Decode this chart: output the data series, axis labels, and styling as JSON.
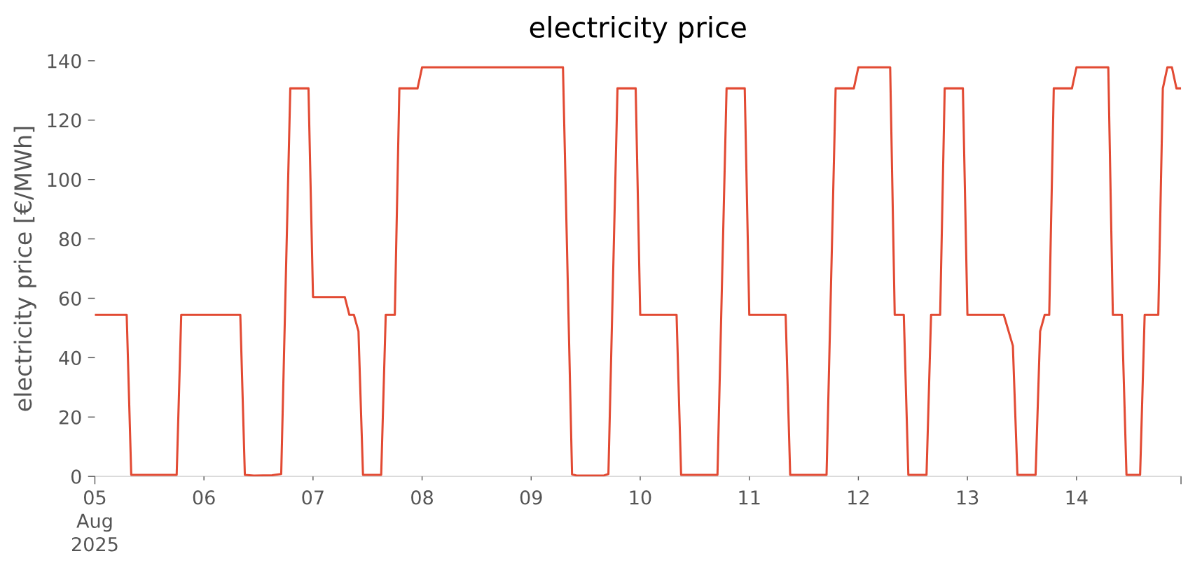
{
  "chart_data": {
    "type": "line",
    "title": "electricity price",
    "ylabel": "electricity price [€/MWh]",
    "x": [
      "2025-08-05T00:00",
      "2025-08-05T07:00",
      "2025-08-05T08:00",
      "2025-08-05T18:00",
      "2025-08-05T19:00",
      "2025-08-06T08:00",
      "2025-08-06T09:00",
      "2025-08-06T11:00",
      "2025-08-06T15:00",
      "2025-08-06T17:00",
      "2025-08-06T19:00",
      "2025-08-06T23:00",
      "2025-08-07T00:00",
      "2025-08-07T07:00",
      "2025-08-07T08:00",
      "2025-08-07T09:00",
      "2025-08-07T10:00",
      "2025-08-07T11:00",
      "2025-08-07T15:00",
      "2025-08-07T16:00",
      "2025-08-07T18:00",
      "2025-08-07T19:00",
      "2025-08-07T23:00",
      "2025-08-08T00:00",
      "2025-08-09T07:00",
      "2025-08-09T09:00",
      "2025-08-09T10:00",
      "2025-08-09T16:00",
      "2025-08-09T17:00",
      "2025-08-09T19:00",
      "2025-08-09T23:00",
      "2025-08-10T00:00",
      "2025-08-10T08:00",
      "2025-08-10T09:00",
      "2025-08-10T17:00",
      "2025-08-10T19:00",
      "2025-08-10T23:00",
      "2025-08-11T00:00",
      "2025-08-11T08:00",
      "2025-08-11T09:00",
      "2025-08-11T17:00",
      "2025-08-11T19:00",
      "2025-08-11T23:00",
      "2025-08-12T00:00",
      "2025-08-12T07:00",
      "2025-08-12T08:00",
      "2025-08-12T10:00",
      "2025-08-12T11:00",
      "2025-08-12T15:00",
      "2025-08-12T16:00",
      "2025-08-12T18:00",
      "2025-08-12T19:00",
      "2025-08-12T23:00",
      "2025-08-13T00:00",
      "2025-08-13T08:00",
      "2025-08-13T10:00",
      "2025-08-13T11:00",
      "2025-08-13T15:00",
      "2025-08-13T16:00",
      "2025-08-13T17:00",
      "2025-08-13T18:00",
      "2025-08-13T19:00",
      "2025-08-13T23:00",
      "2025-08-14T00:00",
      "2025-08-14T07:00",
      "2025-08-14T08:00",
      "2025-08-14T10:00",
      "2025-08-14T11:00",
      "2025-08-14T14:00",
      "2025-08-14T15:00",
      "2025-08-14T18:00",
      "2025-08-14T19:00",
      "2025-08-14T20:00",
      "2025-08-14T21:00",
      "2025-08-14T22:00",
      "2025-08-14T23:00"
    ],
    "series": [
      {
        "color": "#e24a33",
        "values": [
          54.4,
          54.4,
          0.5,
          0.5,
          54.4,
          54.4,
          0.5,
          0.3,
          0.4,
          0.8,
          130.7,
          130.7,
          60.4,
          60.4,
          54.4,
          54.4,
          48.9,
          0.5,
          0.5,
          54.4,
          54.4,
          130.7,
          130.7,
          137.8,
          137.8,
          0.7,
          0.3,
          0.3,
          0.8,
          130.7,
          130.7,
          54.4,
          54.4,
          0.5,
          0.5,
          130.7,
          130.7,
          54.4,
          54.4,
          0.5,
          0.5,
          130.7,
          130.7,
          137.8,
          137.8,
          54.4,
          54.4,
          0.5,
          0.5,
          54.4,
          54.4,
          130.7,
          130.7,
          54.4,
          54.4,
          44.0,
          0.5,
          0.5,
          48.9,
          54.4,
          54.4,
          130.7,
          130.7,
          137.8,
          137.8,
          54.4,
          54.4,
          0.5,
          0.5,
          54.4,
          54.4,
          130.7,
          137.8,
          137.8,
          130.7,
          130.7
        ]
      }
    ],
    "xlim": [
      "2025-08-05T00:00",
      "2025-08-14T23:00"
    ],
    "xticks": [
      {
        "value": "2025-08-05T00:00",
        "label": "05\nAug\n2025"
      },
      {
        "value": "2025-08-06T00:00",
        "label": "06"
      },
      {
        "value": "2025-08-07T00:00",
        "label": "07"
      },
      {
        "value": "2025-08-08T00:00",
        "label": "08"
      },
      {
        "value": "2025-08-09T00:00",
        "label": "09"
      },
      {
        "value": "2025-08-10T00:00",
        "label": "10"
      },
      {
        "value": "2025-08-11T00:00",
        "label": "11"
      },
      {
        "value": "2025-08-12T00:00",
        "label": "12"
      },
      {
        "value": "2025-08-13T00:00",
        "label": "13"
      },
      {
        "value": "2025-08-14T00:00",
        "label": "14"
      },
      {
        "value": "2025-08-14T23:00",
        "label": null
      }
    ],
    "ylim": [
      0,
      140
    ],
    "yticks": [
      0,
      20,
      40,
      60,
      80,
      100,
      120,
      140
    ],
    "grid": false,
    "marker": "none",
    "line_style": "solid"
  }
}
